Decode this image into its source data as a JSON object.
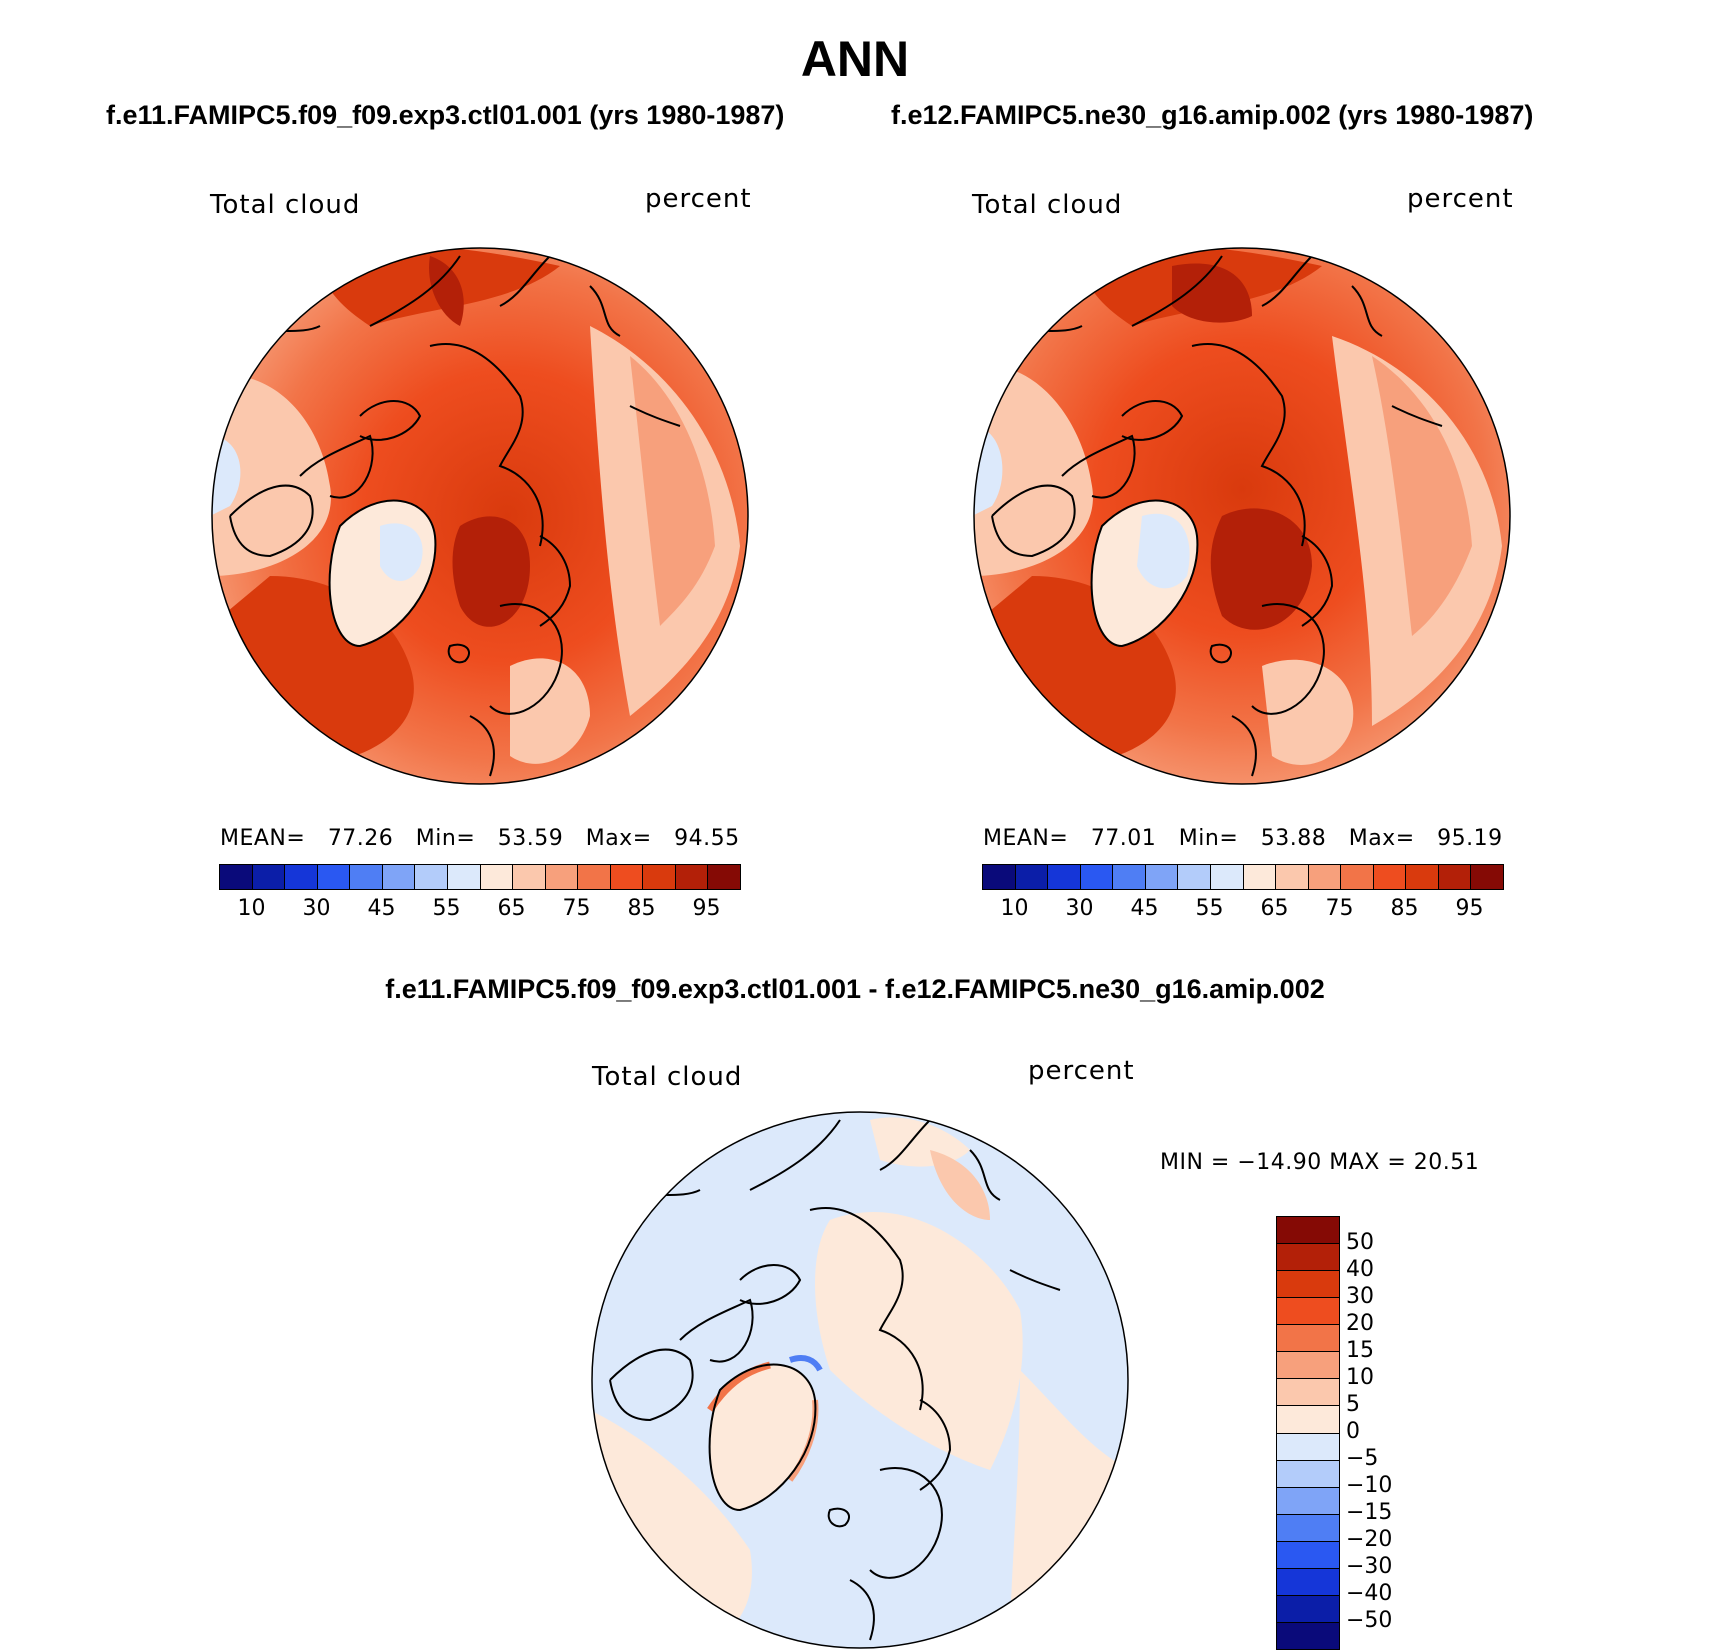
{
  "figure": {
    "season": "ANN",
    "case1_title": "f.e11.FAMIPC5.f09_f09.exp3.ctl01.001 (yrs 1980-1987)",
    "case2_title": "f.e12.FAMIPC5.ne30_g16.amip.002 (yrs 1980-1987)",
    "diff_title": "f.e11.FAMIPC5.f09_f09.exp3.ctl01.001 - f.e12.FAMIPC5.ne30_g16.amip.002"
  },
  "panels": [
    {
      "variable": "Total cloud",
      "units": "percent",
      "stats": {
        "mean_label": "MEAN=",
        "mean": "77.26",
        "min_label": "Min=",
        "min": "53.59",
        "max_label": "Max=",
        "max": "94.55"
      }
    },
    {
      "variable": "Total cloud",
      "units": "percent",
      "stats": {
        "mean_label": "MEAN=",
        "mean": "77.01",
        "min_label": "Min=",
        "min": "53.88",
        "max_label": "Max=",
        "max": "95.19"
      }
    }
  ],
  "diff_panel": {
    "variable": "Total cloud",
    "units": "percent",
    "stats_text": "MIN = −14.90 MAX =  20.51"
  },
  "colorbar_main": {
    "tick_labels": [
      "10",
      "30",
      "45",
      "55",
      "65",
      "75",
      "85",
      "95"
    ],
    "colors": [
      "#0a0a7a",
      "#0b1ea8",
      "#1536d8",
      "#2a58f2",
      "#4f7ef4",
      "#7fa4f7",
      "#b3ccfa",
      "#dce9fb",
      "#fde9da",
      "#fbc8ad",
      "#f7a07c",
      "#f27448",
      "#ee4d1f",
      "#d93a0d",
      "#b32008",
      "#850a05"
    ]
  },
  "colorbar_diff": {
    "tick_labels": [
      "50",
      "40",
      "30",
      "20",
      "15",
      "10",
      "5",
      "0",
      "−5",
      "−10",
      "−15",
      "−20",
      "−30",
      "−40",
      "−50"
    ],
    "colors": [
      "#850a05",
      "#b32008",
      "#d93a0d",
      "#ee4d1f",
      "#f27448",
      "#f7a07c",
      "#fbc8ad",
      "#fde9da",
      "#dce9fb",
      "#b3ccfa",
      "#7fa4f7",
      "#4f7ef4",
      "#2a58f2",
      "#1536d8",
      "#0b1ea8",
      "#0a0a7a"
    ]
  }
}
